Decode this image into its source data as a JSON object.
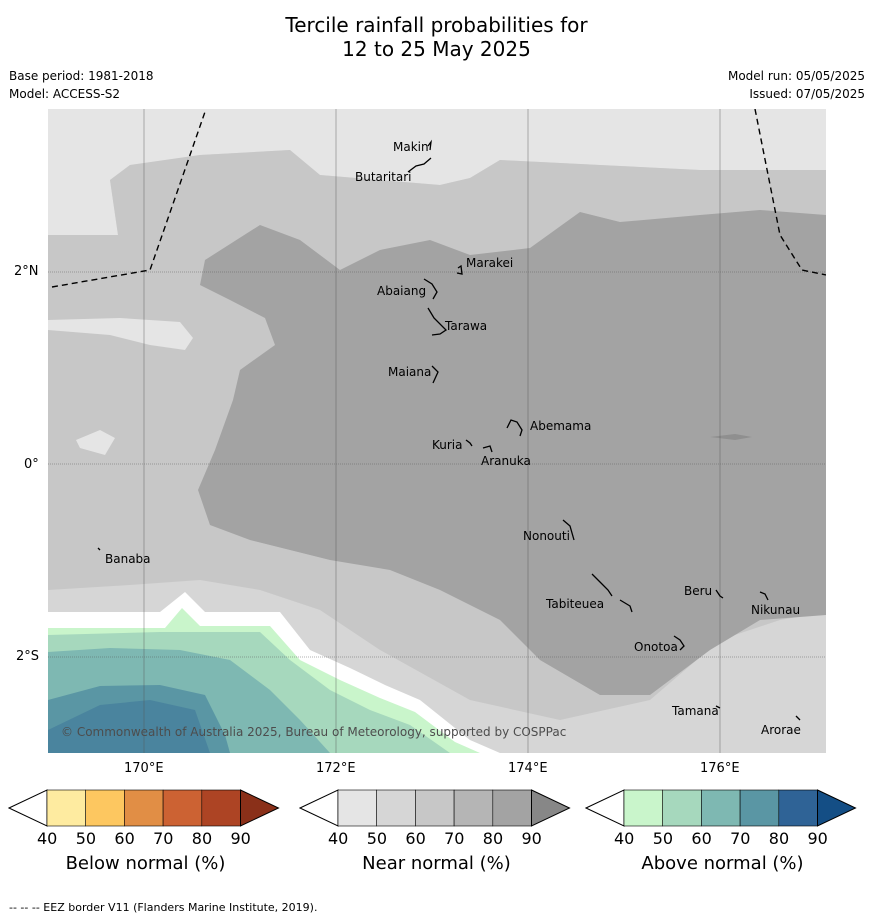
{
  "title": {
    "line1": "Tercile rainfall probabilities for",
    "line2": "12 to 25 May 2025"
  },
  "meta": {
    "base_period": "Base period: 1981-2018",
    "model": "Model: ACCESS-S2",
    "model_run": "Model run: 05/05/2025",
    "issued": "Issued: 07/05/2025"
  },
  "map": {
    "lat_labels": [
      "2°N",
      "0°",
      "2°S"
    ],
    "lon_labels": [
      "170°E",
      "172°E",
      "174°E",
      "176°E"
    ],
    "copyright": "© Commonwealth of Australia 2025, Bureau of Meteorology, supported by COSPPac",
    "places": [
      "Makin",
      "Butaritari",
      "Marakei",
      "Abaiang",
      "Tarawa",
      "Maiana",
      "Abemama",
      "Kuria",
      "Aranuka",
      "Banaba",
      "Nonouti",
      "Beru",
      "Nikunau",
      "Tabiteuea",
      "Onotoa",
      "Tamana",
      "Arorae"
    ]
  },
  "colorbars": [
    {
      "label": "Below normal (%)",
      "ticks": [
        "40",
        "50",
        "60",
        "70",
        "80",
        "90"
      ],
      "colors": [
        "#ffffff",
        "#feeba0",
        "#fdc760",
        "#e18e45",
        "#cc6233",
        "#ad4424",
        "#8a3019"
      ]
    },
    {
      "label": "Near normal (%)",
      "ticks": [
        "40",
        "50",
        "60",
        "70",
        "80",
        "90"
      ],
      "colors": [
        "#ffffff",
        "#e5e5e5",
        "#d6d6d6",
        "#c7c7c7",
        "#b5b5b5",
        "#a3a3a3",
        "#878787"
      ]
    },
    {
      "label": "Above normal (%)",
      "ticks": [
        "40",
        "50",
        "60",
        "70",
        "80",
        "90"
      ],
      "colors": [
        "#ffffff",
        "#c9f5cb",
        "#a6d8bd",
        "#7eb8b2",
        "#5a96a4",
        "#2f6396",
        "#144e85"
      ]
    }
  ],
  "footer": "--  --  -- EEZ border V11 (Flanders Marine Institute, 2019)."
}
